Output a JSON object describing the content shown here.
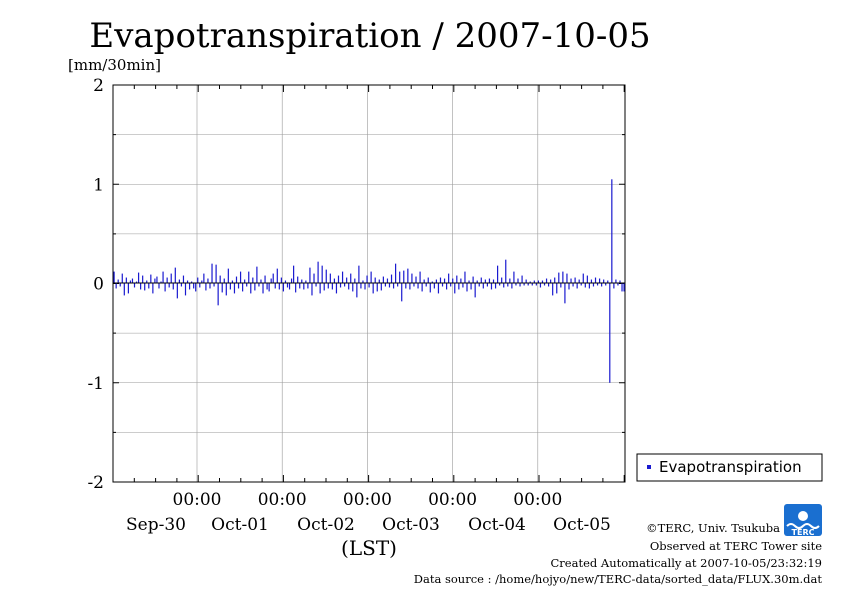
{
  "chart_data": {
    "type": "bar",
    "title": "Evapotranspiration / 2007-10-05",
    "ylabel": "[mm/30min]",
    "xlabel": "(LST)",
    "ylim": [
      -2,
      2
    ],
    "yticks": [
      "2",
      "1",
      "0",
      "-1",
      "-2"
    ],
    "grid": true,
    "legend_position": "right",
    "time_labels": [
      "00:00",
      "00:00",
      "00:00",
      "00:00",
      "00:00"
    ],
    "date_labels": [
      "Sep-30",
      "Oct-01",
      "Oct-02",
      "Oct-03",
      "Oct-04",
      "Oct-05"
    ],
    "series": [
      {
        "name": "Evapotranspiration",
        "color": "#1a1ad0",
        "values": [
          0.12,
          -0.05,
          0.04,
          -0.03,
          0.1,
          -0.12,
          0.06,
          -0.1,
          0.03,
          0.05,
          -0.04,
          0.02,
          0.11,
          -0.06,
          0.08,
          -0.07,
          0.03,
          -0.05,
          0.09,
          -0.1,
          0.05,
          0.07,
          -0.05,
          0.02,
          0.12,
          -0.08,
          0.06,
          -0.04,
          0.1,
          -0.06,
          0.16,
          -0.15,
          0.04,
          -0.03,
          0.08,
          -0.12,
          0.03,
          -0.06,
          0.02,
          -0.05,
          -0.08,
          0.06,
          -0.04,
          0.03,
          0.1,
          -0.07,
          0.05,
          -0.05,
          0.2,
          -0.03,
          0.19,
          -0.22,
          0.08,
          -0.09,
          0.05,
          -0.12,
          0.15,
          -0.06,
          0.03,
          -0.1,
          0.07,
          -0.05,
          0.12,
          -0.08,
          0.04,
          -0.03,
          0.12,
          -0.1,
          0.06,
          -0.07,
          0.17,
          -0.03,
          0.04,
          -0.1,
          0.08,
          -0.06,
          -0.08,
          0.05,
          0.1,
          -0.05,
          0.15,
          -0.06,
          0.06,
          -0.08,
          0.03,
          -0.04,
          -0.06,
          0.05,
          0.18,
          -0.09,
          0.07,
          -0.05,
          0.04,
          -0.06,
          0.03,
          -0.05,
          0.16,
          -0.12,
          0.1,
          -0.03,
          0.22,
          -0.1,
          0.18,
          -0.07,
          0.14,
          -0.05,
          0.1,
          -0.06,
          0.05,
          -0.1,
          0.08,
          -0.04,
          0.12,
          -0.03,
          0.06,
          -0.06,
          0.1,
          -0.08,
          0.05,
          -0.14,
          0.18,
          -0.05,
          0.03,
          -0.06,
          0.08,
          -0.04,
          0.12,
          -0.1,
          0.06,
          -0.08,
          0.04,
          -0.07,
          0.07,
          -0.03,
          0.05,
          -0.04,
          0.09,
          -0.05,
          0.2,
          -0.03,
          0.12,
          -0.18,
          0.13,
          -0.05,
          0.15,
          -0.06,
          0.1,
          -0.03,
          0.07,
          -0.05,
          0.12,
          -0.08,
          0.04,
          -0.03,
          0.06,
          -0.09,
          0.02,
          -0.05,
          0.04,
          -0.1,
          0.06,
          -0.03,
          0.05,
          -0.06,
          0.1,
          -0.03,
          0.05,
          -0.1,
          0.08,
          -0.06,
          0.05,
          -0.04,
          0.12,
          -0.08,
          0.03,
          -0.06,
          0.07,
          -0.14,
          0.03,
          -0.03,
          0.06,
          -0.05,
          0.04,
          -0.03,
          0.05,
          -0.06,
          0.04,
          -0.05,
          0.18,
          -0.02,
          0.06,
          -0.04,
          0.24,
          -0.03,
          0.05,
          -0.05,
          0.12,
          -0.02,
          0.05,
          -0.03,
          0.08,
          -0.02,
          0.04,
          -0.02,
          0.02,
          -0.02,
          0.03,
          -0.02,
          0.03,
          -0.04,
          0.03,
          -0.02,
          0.05,
          -0.03,
          0.04,
          -0.12,
          0.06,
          -0.1,
          0.11,
          -0.04,
          0.12,
          -0.2,
          0.1,
          -0.06,
          0.05,
          -0.03,
          0.06,
          -0.05,
          0.04,
          -0.02,
          0.1,
          -0.04,
          0.08,
          -0.05,
          0.04,
          -0.03,
          0.06,
          -0.02,
          0.05,
          -0.03,
          0.04,
          -0.02,
          0.03,
          -1.0,
          1.05,
          -0.05,
          0.04,
          -0.02,
          0.03,
          -0.08,
          -0.08
        ]
      }
    ]
  },
  "footer": {
    "copyright": "©TERC, Univ. Tsukuba",
    "observed": "Observed at TERC Tower site",
    "created": "Created Automatically at 2007-10-05/23:32:19",
    "source": "Data source : /home/hojyo/new/TERC-data/sorted_data/FLUX.30m.dat"
  },
  "logo": {
    "text": "TERC",
    "color": "#1a6fd0"
  }
}
